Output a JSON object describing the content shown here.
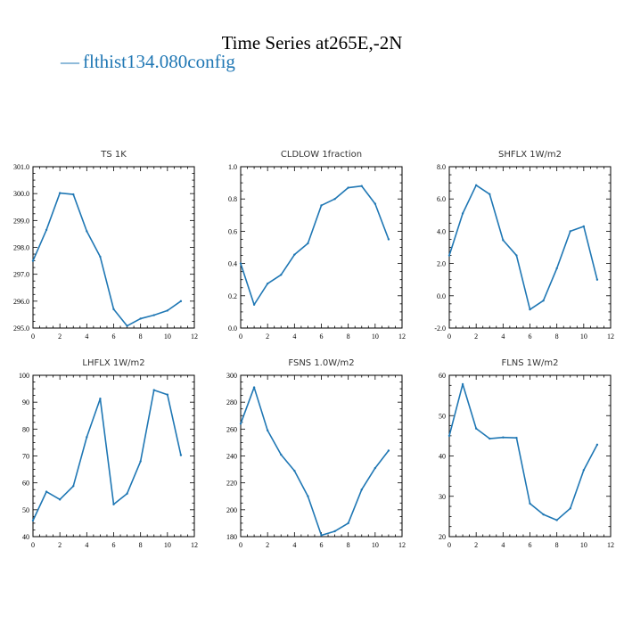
{
  "figure": {
    "title": "Time Series at265E,-2N",
    "legend_label": "flthist134.080config",
    "legend_marker": "—",
    "line_color": "#1f77b4"
  },
  "chart_data": [
    {
      "type": "line",
      "title": "TS   1K",
      "xlim": [
        0,
        12
      ],
      "ylim": [
        295.0,
        301.0
      ],
      "xticks": [
        0,
        2,
        4,
        6,
        8,
        10,
        12
      ],
      "yticks": [
        295.0,
        296.0,
        297.0,
        298.0,
        299.0,
        300.0,
        301.0
      ],
      "ytick_decimals": 1,
      "x": [
        0,
        1,
        2,
        3,
        4,
        5,
        6,
        7,
        8,
        9,
        10,
        11
      ],
      "y": [
        297.5,
        298.65,
        300.02,
        299.97,
        298.6,
        297.65,
        295.7,
        295.08,
        295.35,
        295.48,
        295.65,
        296.0
      ]
    },
    {
      "type": "line",
      "title": "CLDLOW   1fraction",
      "xlim": [
        0,
        12
      ],
      "ylim": [
        0.0,
        1.0
      ],
      "xticks": [
        0,
        2,
        4,
        6,
        8,
        10,
        12
      ],
      "yticks": [
        0.0,
        0.2,
        0.4,
        0.6,
        0.8,
        1.0
      ],
      "ytick_decimals": 1,
      "x": [
        0,
        1,
        2,
        3,
        4,
        5,
        6,
        7,
        8,
        9,
        10,
        11
      ],
      "y": [
        0.4,
        0.145,
        0.275,
        0.33,
        0.455,
        0.525,
        0.76,
        0.8,
        0.87,
        0.88,
        0.77,
        0.55
      ]
    },
    {
      "type": "line",
      "title": "SHFLX   1W/m2",
      "xlim": [
        0,
        12
      ],
      "ylim": [
        -2.0,
        8.0
      ],
      "xticks": [
        0,
        2,
        4,
        6,
        8,
        10,
        12
      ],
      "yticks": [
        -2.0,
        0.0,
        2.0,
        4.0,
        6.0,
        8.0
      ],
      "ytick_decimals": 1,
      "x": [
        0,
        1,
        2,
        3,
        4,
        5,
        6,
        7,
        8,
        9,
        10,
        11
      ],
      "y": [
        2.5,
        5.1,
        6.85,
        6.3,
        3.45,
        2.5,
        -0.85,
        -0.3,
        1.7,
        4.0,
        4.3,
        1.0
      ]
    },
    {
      "type": "line",
      "title": "LHFLX   1W/m2",
      "xlim": [
        0,
        12
      ],
      "ylim": [
        40,
        100
      ],
      "xticks": [
        0,
        2,
        4,
        6,
        8,
        10,
        12
      ],
      "yticks": [
        40,
        50,
        60,
        70,
        80,
        90,
        100
      ],
      "ytick_decimals": 0,
      "x": [
        0,
        1,
        2,
        3,
        4,
        5,
        6,
        7,
        8,
        9,
        10,
        11
      ],
      "y": [
        46,
        56.7,
        53.8,
        58.8,
        77,
        91.3,
        52,
        56,
        68,
        94.5,
        92.8,
        70.3
      ]
    },
    {
      "type": "line",
      "title": "FSNS   1.0W/m2",
      "xlim": [
        0,
        12
      ],
      "ylim": [
        180,
        300
      ],
      "xticks": [
        0,
        2,
        4,
        6,
        8,
        10,
        12
      ],
      "yticks": [
        180,
        200,
        220,
        240,
        260,
        280,
        300
      ],
      "ytick_decimals": 0,
      "x": [
        0,
        1,
        2,
        3,
        4,
        5,
        6,
        7,
        8,
        9,
        10,
        11
      ],
      "y": [
        264,
        291,
        259,
        241,
        229,
        210,
        181,
        184,
        190,
        215,
        231,
        244
      ]
    },
    {
      "type": "line",
      "title": "FLNS   1W/m2",
      "xlim": [
        0,
        12
      ],
      "ylim": [
        20,
        60
      ],
      "xticks": [
        0,
        2,
        4,
        6,
        8,
        10,
        12
      ],
      "yticks": [
        20,
        30,
        40,
        50,
        60
      ],
      "ytick_decimals": 0,
      "x": [
        0,
        1,
        2,
        3,
        4,
        5,
        6,
        7,
        8,
        9,
        10,
        11
      ],
      "y": [
        45,
        57.8,
        46.8,
        44.3,
        44.6,
        44.5,
        28.2,
        25.5,
        24.1,
        27,
        36.5,
        42.8
      ]
    }
  ]
}
